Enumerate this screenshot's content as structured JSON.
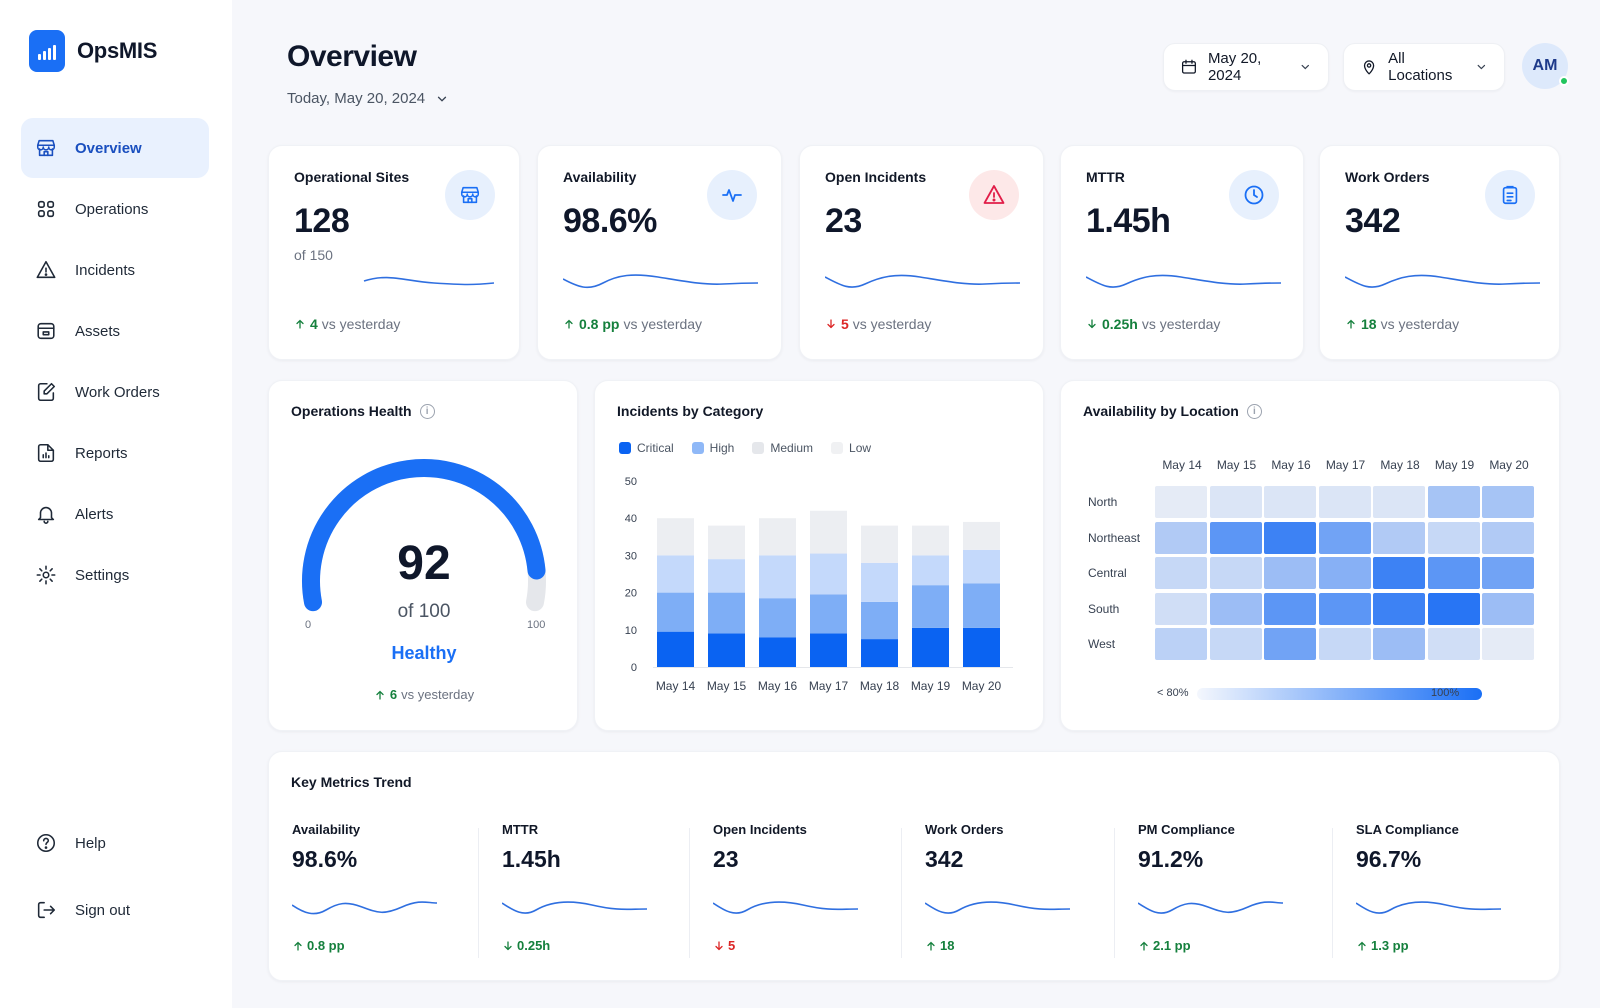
{
  "app": {
    "name": "OpsMIS"
  },
  "sidebar": {
    "items": [
      {
        "label": "Overview",
        "icon": "store-icon",
        "active": true
      },
      {
        "label": "Operations",
        "icon": "operations-icon"
      },
      {
        "label": "Incidents",
        "icon": "warning-icon"
      },
      {
        "label": "Assets",
        "icon": "box-icon"
      },
      {
        "label": "Work Orders",
        "icon": "edit-document-icon"
      },
      {
        "label": "Reports",
        "icon": "report-icon"
      },
      {
        "label": "Alerts",
        "icon": "bell-icon"
      },
      {
        "label": "Settings",
        "icon": "gear-icon"
      }
    ],
    "bottom": [
      {
        "label": "Help",
        "icon": "help-icon"
      },
      {
        "label": "Sign out",
        "icon": "sign-out-icon"
      }
    ]
  },
  "header": {
    "title": "Overview",
    "date_label": "Today, May 20, 2024",
    "date_picker": "May 20, 2024",
    "location_picker": "All Locations",
    "avatar_initials": "AM"
  },
  "kpis": [
    {
      "label": "Operational Sites",
      "value": "128",
      "sub": "of 150",
      "delta": "4",
      "delta_suffix": "vs yesterday",
      "direction": "up",
      "sentiment": "good",
      "icon": "store-icon",
      "icon_bg": "#e7f0fd",
      "icon_color": "#1a6ff5"
    },
    {
      "label": "Availability",
      "value": "98.6%",
      "sub": "",
      "delta": "0.8 pp",
      "delta_suffix": "vs yesterday",
      "direction": "up",
      "sentiment": "good",
      "icon": "pulse-icon",
      "icon_bg": "#e7f0fd",
      "icon_color": "#1a6ff5"
    },
    {
      "label": "Open Incidents",
      "value": "23",
      "sub": "",
      "delta": "5",
      "delta_suffix": "vs yesterday",
      "direction": "down",
      "sentiment": "bad",
      "icon": "alert-triangle-icon",
      "icon_bg": "#fde8e8",
      "icon_color": "#e11d48"
    },
    {
      "label": "MTTR",
      "value": "1.45h",
      "sub": "",
      "delta": "0.25h",
      "delta_suffix": "vs yesterday",
      "direction": "down",
      "sentiment": "good",
      "icon": "clock-icon",
      "icon_bg": "#e7f0fd",
      "icon_color": "#1a6ff5"
    },
    {
      "label": "Work Orders",
      "value": "342",
      "sub": "",
      "delta": "18",
      "delta_suffix": "vs yesterday",
      "direction": "up",
      "sentiment": "good",
      "icon": "clipboard-icon",
      "icon_bg": "#e7f0fd",
      "icon_color": "#1a6ff5"
    }
  ],
  "health": {
    "title": "Operations Health",
    "score": "92",
    "score_value": 92,
    "of_label": "of 100",
    "min_label": "0",
    "max_label": "100",
    "status": "Healthy",
    "delta": "6",
    "delta_suffix": "vs yesterday"
  },
  "incidents": {
    "title": "Incidents by Category",
    "legend": [
      {
        "name": "Critical",
        "color": "#0a63f2"
      },
      {
        "name": "High",
        "color": "#8fb8f7"
      },
      {
        "name": "Medium",
        "color": "#e5e7eb"
      },
      {
        "name": "Low",
        "color": "#f0f1f3"
      }
    ]
  },
  "chart_data": [
    {
      "type": "bar",
      "stacked": true,
      "title": "Incidents by Category",
      "categories": [
        "May 14",
        "May 15",
        "May 16",
        "May 17",
        "May 18",
        "May 19",
        "May 20"
      ],
      "series": [
        {
          "name": "Critical",
          "color": "#0a63f2",
          "values": [
            9.5,
            9,
            8,
            9,
            7.5,
            10.5,
            10.5
          ]
        },
        {
          "name": "High",
          "color": "#7eaef6",
          "values": [
            10.5,
            11,
            10.5,
            10.5,
            10,
            11.5,
            12
          ]
        },
        {
          "name": "Medium",
          "color": "#c4d9fb",
          "values": [
            10,
            9,
            11.5,
            11,
            10.5,
            8,
            9
          ]
        },
        {
          "name": "Low",
          "color": "#eceef2",
          "values": [
            10,
            9,
            10,
            11.5,
            10,
            8,
            7.5
          ]
        }
      ],
      "yticks": [
        0,
        10,
        20,
        30,
        40,
        50
      ],
      "ylim": [
        0,
        50
      ],
      "grid": false,
      "legend_position": "top-left"
    },
    {
      "type": "heatmap",
      "title": "Availability by Location",
      "columns": [
        "May 14",
        "May 15",
        "May 16",
        "May 17",
        "May 18",
        "May 19",
        "May 20"
      ],
      "rows": [
        "North",
        "Northeast",
        "Central",
        "South",
        "West"
      ],
      "values": [
        [
          0.05,
          0.1,
          0.1,
          0.1,
          0.1,
          0.35,
          0.35
        ],
        [
          0.3,
          0.7,
          0.85,
          0.6,
          0.3,
          0.2,
          0.3
        ],
        [
          0.2,
          0.2,
          0.4,
          0.5,
          0.85,
          0.7,
          0.6
        ],
        [
          0.15,
          0.4,
          0.7,
          0.7,
          0.85,
          0.95,
          0.4
        ],
        [
          0.25,
          0.2,
          0.6,
          0.2,
          0.4,
          0.15,
          0.05
        ]
      ],
      "scale_min_label": "< 80%",
      "scale_max_label": "100%"
    }
  ],
  "availability_by_location": {
    "title": "Availability by Location"
  },
  "trend": {
    "title": "Key Metrics Trend",
    "items": [
      {
        "label": "Availability",
        "value": "98.6%",
        "delta": "0.8 pp",
        "direction": "up",
        "sentiment": "good"
      },
      {
        "label": "MTTR",
        "value": "1.45h",
        "delta": "0.25h",
        "direction": "down",
        "sentiment": "good"
      },
      {
        "label": "Open Incidents",
        "value": "23",
        "delta": "5",
        "direction": "down",
        "sentiment": "bad"
      },
      {
        "label": "Work Orders",
        "value": "342",
        "delta": "18",
        "direction": "up",
        "sentiment": "good"
      },
      {
        "label": "PM Compliance",
        "value": "91.2%",
        "delta": "2.1 pp",
        "direction": "up",
        "sentiment": "good"
      },
      {
        "label": "SLA Compliance",
        "value": "96.7%",
        "delta": "1.3 pp",
        "direction": "up",
        "sentiment": "good"
      }
    ]
  },
  "colors": {
    "accent": "#1a6ff5",
    "good": "#15803d",
    "bad": "#dc2626"
  }
}
